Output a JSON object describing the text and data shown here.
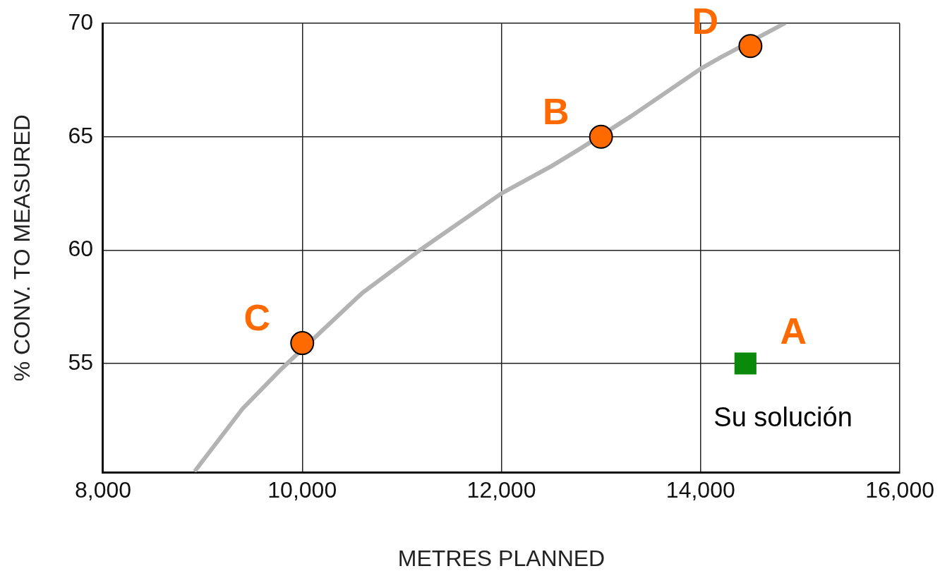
{
  "chart_data": {
    "type": "scatter",
    "xlabel": "METRES PLANNED",
    "ylabel": "% CONV. TO MEASURED",
    "xlim": [
      8000,
      16000
    ],
    "xticks": [
      {
        "value": 8000,
        "label": "8,000"
      },
      {
        "value": 10000,
        "label": "10,000"
      },
      {
        "value": 12000,
        "label": "12,000"
      },
      {
        "value": 14000,
        "label": "14,000"
      },
      {
        "value": 16000,
        "label": "16,000"
      }
    ],
    "ylim": [
      50.2,
      70
    ],
    "yticks": [
      55,
      60,
      65,
      70
    ],
    "grid": true,
    "series": [
      {
        "type": "line",
        "color": "#b3b3b3",
        "marker": "none",
        "x": [
          8930,
          9400,
          9800,
          10600,
          11213,
          12000,
          12500,
          12800,
          13300,
          14000,
          14200,
          14842
        ],
        "values": [
          50.3,
          53.0,
          54.8,
          58.1,
          60.1,
          62.5,
          63.7,
          64.5,
          65.9,
          68.0,
          68.5,
          70.0
        ]
      },
      {
        "color": "#ff6a00",
        "marker": "circle",
        "x": [
          10000,
          13000,
          14500
        ],
        "values": [
          55.9,
          65.0,
          69.0
        ]
      },
      {
        "type": "scatter",
        "color": "#0a8a0a",
        "marker": "square",
        "x": [
          14450
        ],
        "values": [
          55.0
        ]
      }
    ],
    "annotations": [
      {
        "text": "C",
        "x": 10000,
        "y": 55.9
      },
      {
        "text": "B",
        "x": 13000,
        "y": 65.0
      },
      {
        "text": "D",
        "x": 14500,
        "y": 69.0
      },
      {
        "text": "A",
        "x": 14450,
        "y": 55.0
      },
      "Su solución"
    ]
  }
}
